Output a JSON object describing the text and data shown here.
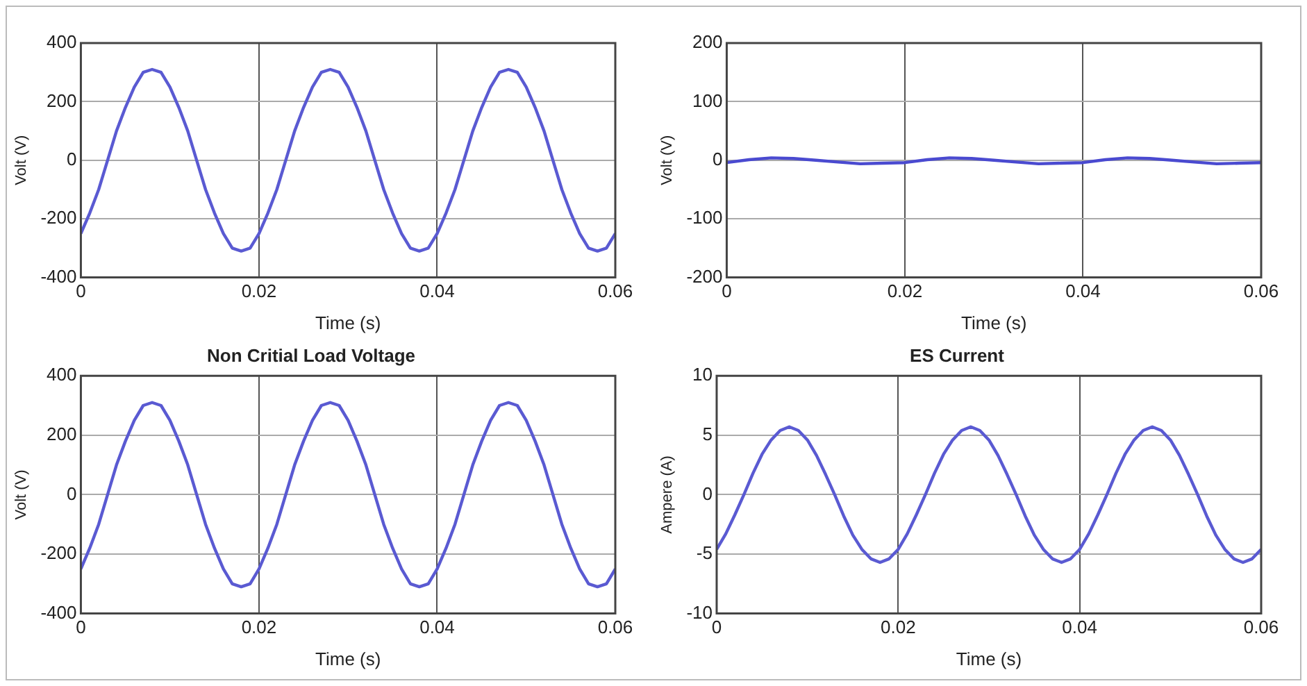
{
  "chart_data": [
    {
      "type": "line",
      "xlabel": "Time (s)",
      "ylabel": "Volt (V)",
      "xlim": [
        0,
        0.06
      ],
      "xticks": [
        0,
        0.02,
        0.04,
        0.06
      ],
      "ylim": [
        -400,
        400
      ],
      "yticks": [
        -400,
        -200,
        0,
        200,
        400
      ],
      "grid": true,
      "legend": false,
      "marker": "none",
      "line_style": "solid",
      "x": [
        0,
        0.001,
        0.002,
        0.003,
        0.004,
        0.005,
        0.006,
        0.007,
        0.008,
        0.009,
        0.01,
        0.011,
        0.012,
        0.013,
        0.014,
        0.015,
        0.016,
        0.017,
        0.018,
        0.019,
        0.02,
        0.021,
        0.022,
        0.023,
        0.024,
        0.025,
        0.026,
        0.027,
        0.028,
        0.029,
        0.03,
        0.031,
        0.032,
        0.033,
        0.034,
        0.035,
        0.036,
        0.037,
        0.038,
        0.039,
        0.04,
        0.041,
        0.042,
        0.043,
        0.044,
        0.045,
        0.046,
        0.047,
        0.048,
        0.049,
        0.05,
        0.051,
        0.052,
        0.053,
        0.054,
        0.055,
        0.056,
        0.057,
        0.058,
        0.059,
        0.06
      ],
      "series": [
        {
          "color": "#5a5ad2",
          "values": [
            -250,
            -180,
            -100,
            0,
            100,
            180,
            250,
            300,
            310,
            300,
            250,
            180,
            100,
            0,
            -100,
            -180,
            -250,
            -300,
            -310,
            -300,
            -250,
            -180,
            -100,
            0,
            100,
            180,
            250,
            300,
            310,
            300,
            250,
            180,
            100,
            0,
            -100,
            -180,
            -250,
            -300,
            -310,
            -300,
            -250,
            -180,
            -100,
            0,
            100,
            180,
            250,
            300,
            310,
            300,
            250,
            180,
            100,
            0,
            -100,
            -180,
            -250,
            -300,
            -310,
            -300,
            -250
          ]
        }
      ]
    },
    {
      "type": "line",
      "xlabel": "Time (s)",
      "ylabel": "Volt (V)",
      "xlim": [
        0,
        0.06
      ],
      "xticks": [
        0,
        0.02,
        0.04,
        0.06
      ],
      "ylim": [
        -200,
        200
      ],
      "yticks": [
        -200,
        -100,
        0,
        100,
        200
      ],
      "grid": true,
      "legend": false,
      "marker": "none",
      "line_style": "solid",
      "x": [
        0,
        0.0025,
        0.005,
        0.0075,
        0.01,
        0.0125,
        0.015,
        0.0175,
        0.02,
        0.0225,
        0.025,
        0.0275,
        0.03,
        0.0325,
        0.035,
        0.0375,
        0.04,
        0.0425,
        0.045,
        0.0475,
        0.05,
        0.0525,
        0.055,
        0.0575,
        0.06
      ],
      "series": [
        {
          "color": "#4a4ad0",
          "values": [
            -4,
            1,
            4,
            3,
            0,
            -3,
            -6,
            -5,
            -4,
            1,
            4,
            3,
            0,
            -3,
            -6,
            -5,
            -4,
            1,
            4,
            3,
            0,
            -3,
            -6,
            -5,
            -4
          ]
        }
      ]
    },
    {
      "type": "line",
      "title": "Non Critial Load Voltage",
      "xlabel": "Time (s)",
      "ylabel": "Volt (V)",
      "xlim": [
        0,
        0.06
      ],
      "xticks": [
        0,
        0.02,
        0.04,
        0.06
      ],
      "ylim": [
        -400,
        400
      ],
      "yticks": [
        -400,
        -200,
        0,
        200,
        400
      ],
      "grid": true,
      "legend": false,
      "marker": "none",
      "line_style": "solid",
      "x": [
        0,
        0.001,
        0.002,
        0.003,
        0.004,
        0.005,
        0.006,
        0.007,
        0.008,
        0.009,
        0.01,
        0.011,
        0.012,
        0.013,
        0.014,
        0.015,
        0.016,
        0.017,
        0.018,
        0.019,
        0.02,
        0.021,
        0.022,
        0.023,
        0.024,
        0.025,
        0.026,
        0.027,
        0.028,
        0.029,
        0.03,
        0.031,
        0.032,
        0.033,
        0.034,
        0.035,
        0.036,
        0.037,
        0.038,
        0.039,
        0.04,
        0.041,
        0.042,
        0.043,
        0.044,
        0.045,
        0.046,
        0.047,
        0.048,
        0.049,
        0.05,
        0.051,
        0.052,
        0.053,
        0.054,
        0.055,
        0.056,
        0.057,
        0.058,
        0.059,
        0.06
      ],
      "series": [
        {
          "color": "#5a5ad2",
          "values": [
            -250,
            -180,
            -100,
            0,
            100,
            180,
            250,
            300,
            310,
            300,
            250,
            180,
            100,
            0,
            -100,
            -180,
            -250,
            -300,
            -310,
            -300,
            -250,
            -180,
            -100,
            0,
            100,
            180,
            250,
            300,
            310,
            300,
            250,
            180,
            100,
            0,
            -100,
            -180,
            -250,
            -300,
            -310,
            -300,
            -250,
            -180,
            -100,
            0,
            100,
            180,
            250,
            300,
            310,
            300,
            250,
            180,
            100,
            0,
            -100,
            -180,
            -250,
            -300,
            -310,
            -300,
            -250
          ]
        }
      ]
    },
    {
      "type": "line",
      "title": "ES Current",
      "xlabel": "Time (s)",
      "ylabel": "Ampere (A)",
      "xlim": [
        0,
        0.06
      ],
      "xticks": [
        0,
        0.02,
        0.04,
        0.06
      ],
      "ylim": [
        -10,
        10
      ],
      "yticks": [
        -10,
        -5,
        0,
        5,
        10
      ],
      "grid": true,
      "legend": false,
      "marker": "none",
      "line_style": "solid",
      "x": [
        0,
        0.001,
        0.002,
        0.003,
        0.004,
        0.005,
        0.006,
        0.007,
        0.008,
        0.009,
        0.01,
        0.011,
        0.012,
        0.013,
        0.014,
        0.015,
        0.016,
        0.017,
        0.018,
        0.019,
        0.02,
        0.021,
        0.022,
        0.023,
        0.024,
        0.025,
        0.026,
        0.027,
        0.028,
        0.029,
        0.03,
        0.031,
        0.032,
        0.033,
        0.034,
        0.035,
        0.036,
        0.037,
        0.038,
        0.039,
        0.04,
        0.041,
        0.042,
        0.043,
        0.044,
        0.045,
        0.046,
        0.047,
        0.048,
        0.049,
        0.05,
        0.051,
        0.052,
        0.053,
        0.054,
        0.055,
        0.056,
        0.057,
        0.058,
        0.059,
        0.06
      ],
      "series": [
        {
          "color": "#5a5ad2",
          "values": [
            -4.6,
            -3.3,
            -1.7,
            0,
            1.8,
            3.4,
            4.6,
            5.4,
            5.7,
            5.4,
            4.6,
            3.3,
            1.7,
            0,
            -1.8,
            -3.4,
            -4.6,
            -5.4,
            -5.7,
            -5.4,
            -4.6,
            -3.3,
            -1.7,
            0,
            1.8,
            3.4,
            4.6,
            5.4,
            5.7,
            5.4,
            4.6,
            3.3,
            1.7,
            0,
            -1.8,
            -3.4,
            -4.6,
            -5.4,
            -5.7,
            -5.4,
            -4.6,
            -3.3,
            -1.7,
            0,
            1.8,
            3.4,
            4.6,
            5.4,
            5.7,
            5.4,
            4.6,
            3.3,
            1.7,
            0,
            -1.8,
            -3.4,
            -4.6,
            -5.4,
            -5.7,
            -5.4,
            -4.6
          ]
        }
      ]
    }
  ]
}
